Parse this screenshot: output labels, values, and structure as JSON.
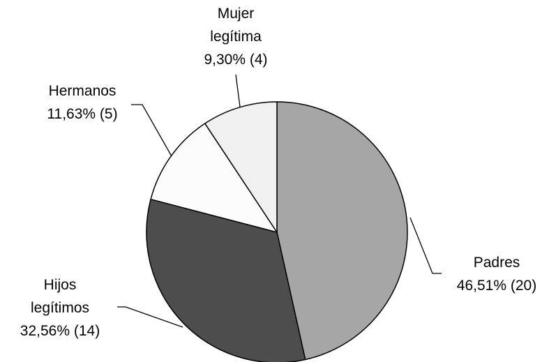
{
  "chart_data": {
    "type": "pie",
    "title": "",
    "slices": [
      {
        "label": "Padres",
        "lines": [
          "Padres"
        ],
        "percent_label": "46,51% (20)",
        "value": 20,
        "percent": 46.51,
        "color": "#a6a6a6"
      },
      {
        "label": "Hijos legítimos",
        "lines": [
          "Hijos",
          "legítimos"
        ],
        "percent_label": "32,56% (14)",
        "value": 14,
        "percent": 32.56,
        "color": "#4d4d4d"
      },
      {
        "label": "Hermanos",
        "lines": [
          "Hermanos"
        ],
        "percent_label": "11,63% (5)",
        "value": 5,
        "percent": 11.63,
        "color": "#fcfcfc"
      },
      {
        "label": "Mujer legítima",
        "lines": [
          "Mujer",
          "legítima"
        ],
        "percent_label": "9,30% (4)",
        "value": 4,
        "percent": 9.3,
        "color": "#f0f0f0"
      }
    ],
    "start_angle_deg": 0,
    "direction": "clockwise",
    "legend": "none"
  }
}
